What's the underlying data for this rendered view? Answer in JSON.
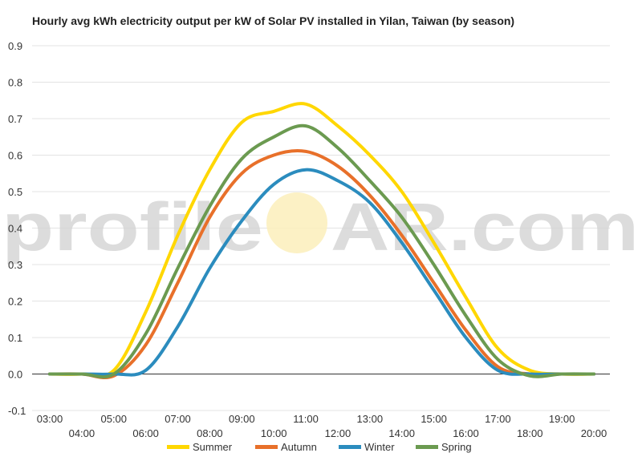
{
  "chart_data": {
    "type": "line",
    "title": "Hourly avg kWh electricity output per kW of Solar PV installed in Yilan, Taiwan (by season)",
    "xlabel": "",
    "ylabel": "",
    "ylim": [
      -0.1,
      0.9
    ],
    "yticks": [
      "0.9",
      "0.8",
      "0.7",
      "0.6",
      "0.5",
      "0.4",
      "0.3",
      "0.2",
      "0.1",
      "0.0",
      "-0.1"
    ],
    "yticks_values": [
      0.9,
      0.8,
      0.7,
      0.6,
      0.5,
      0.4,
      0.3,
      0.2,
      0.1,
      0.0,
      -0.1
    ],
    "xlim": [
      3,
      20
    ],
    "xticks_upper": [
      "03:00",
      "05:00",
      "07:00",
      "09:00",
      "11:00",
      "13:00",
      "15:00",
      "17:00",
      "19:00"
    ],
    "xticks_lower": [
      "04:00",
      "06:00",
      "08:00",
      "10:00",
      "12:00",
      "14:00",
      "16:00",
      "18:00",
      "20:00"
    ],
    "x": [
      3,
      4,
      5,
      6,
      7,
      8,
      9,
      10,
      11,
      12,
      13,
      14,
      15,
      16,
      17,
      18,
      19,
      20
    ],
    "grid": true,
    "legend_position": "bottom",
    "series": [
      {
        "name": "Summer",
        "color": "#FFD700",
        "values": [
          0,
          0,
          0.01,
          0.17,
          0.38,
          0.56,
          0.69,
          0.72,
          0.74,
          0.68,
          0.6,
          0.5,
          0.36,
          0.21,
          0.07,
          0.01,
          0,
          0
        ]
      },
      {
        "name": "Autumn",
        "color": "#E8702A",
        "values": [
          0,
          0,
          -0.005,
          0.08,
          0.25,
          0.43,
          0.55,
          0.6,
          0.61,
          0.57,
          0.49,
          0.38,
          0.25,
          0.12,
          0.02,
          0,
          0,
          0
        ]
      },
      {
        "name": "Winter",
        "color": "#2B8CBE",
        "values": [
          0,
          0,
          0,
          0.01,
          0.13,
          0.29,
          0.42,
          0.52,
          0.56,
          0.53,
          0.47,
          0.36,
          0.23,
          0.1,
          0.01,
          0,
          0,
          0
        ]
      },
      {
        "name": "Spring",
        "color": "#6B9A50",
        "values": [
          0,
          0,
          0,
          0.11,
          0.29,
          0.46,
          0.59,
          0.65,
          0.68,
          0.62,
          0.53,
          0.43,
          0.3,
          0.16,
          0.04,
          -0.005,
          0,
          0
        ]
      }
    ]
  },
  "watermark": {
    "left": "profile",
    "right": "AR.com"
  }
}
